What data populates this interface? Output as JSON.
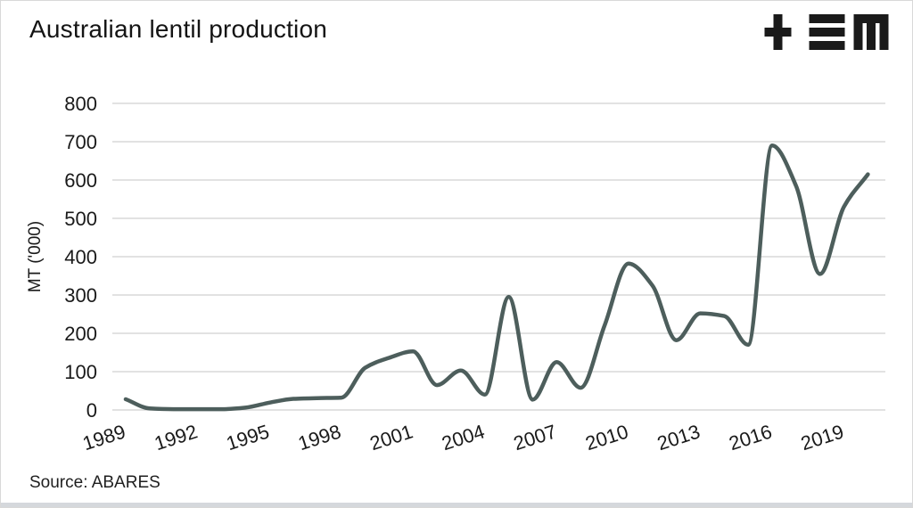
{
  "header": {
    "title": "Australian lentil production",
    "logo_icon": "tem-logo"
  },
  "footer": {
    "source": "Source: ABARES"
  },
  "colors": {
    "line": "#4d5e5c",
    "grid": "#d9d9d9",
    "text": "#1a1a1a",
    "logo": "#1a1a1a",
    "accent_bar": "#d5d8dc",
    "border": "#d8d8d8",
    "background": "#ffffff"
  },
  "chart_data": {
    "type": "line",
    "title": "Australian lentil production",
    "xlabel": "",
    "ylabel": "MT ('000)",
    "source": "Source: ABARES",
    "grid": true,
    "legend_position": "none",
    "smoothing": "monotone",
    "ylim": [
      0,
      800
    ],
    "xlim": [
      1989,
      2020
    ],
    "y_ticks": [
      0,
      100,
      200,
      300,
      400,
      500,
      600,
      700,
      800
    ],
    "x_tick_labels": [
      "1989",
      "1992",
      "1995",
      "1998",
      "2001",
      "2004",
      "2007",
      "2010",
      "2013",
      "2016",
      "2019"
    ],
    "x": [
      1989,
      1990,
      1991,
      1992,
      1993,
      1994,
      1995,
      1996,
      1997,
      1998,
      1999,
      2000,
      2001,
      2002,
      2003,
      2004,
      2005,
      2006,
      2007,
      2008,
      2009,
      2010,
      2011,
      2012,
      2013,
      2014,
      2015,
      2016,
      2017,
      2018,
      2019,
      2020
    ],
    "series": [
      {
        "name": "Lentil production (MT '000)",
        "values": [
          28,
          4,
          2,
          2,
          2,
          6,
          19,
          29,
          31,
          32,
          110,
          136,
          153,
          65,
          103,
          40,
          295,
          27,
          125,
          58,
          220,
          382,
          325,
          182,
          252,
          245,
          170,
          690,
          585,
          355,
          530,
          615
        ]
      }
    ]
  }
}
